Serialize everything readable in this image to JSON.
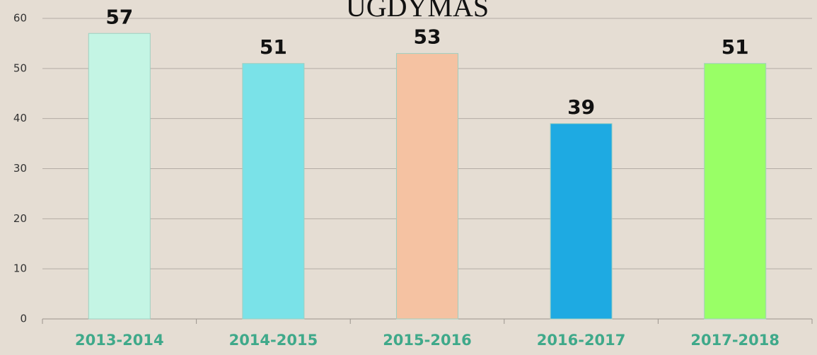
{
  "chart_data": {
    "type": "bar",
    "title": "UGDYMAS",
    "categories": [
      "2013-2014",
      "2014-2015",
      "2015-2016",
      "2016-2017",
      "2017-2018"
    ],
    "values": [
      57,
      51,
      53,
      39,
      51
    ],
    "colors": [
      "#c4f5e4",
      "#7ae2e8",
      "#f5c2a2",
      "#1eaae2",
      "#99ff66"
    ],
    "ylim": [
      0,
      60
    ],
    "yticks": [
      0,
      10,
      20,
      30,
      40,
      50,
      60
    ],
    "grid": true
  }
}
